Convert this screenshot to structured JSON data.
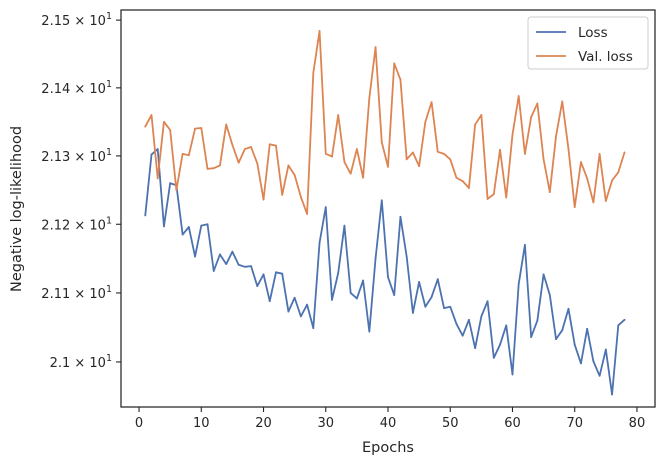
{
  "chart_data": {
    "type": "line",
    "title": "",
    "xlabel": "Epochs",
    "ylabel": "Negative log-likelihood",
    "xlim": [
      -2.9,
      82.9
    ],
    "ylim": [
      20.935,
      21.515
    ],
    "x_ticks": [
      0,
      10,
      20,
      30,
      40,
      50,
      60,
      70,
      80
    ],
    "x_tick_labels": [
      "0",
      "10",
      "20",
      "30",
      "40",
      "50",
      "60",
      "70",
      "80"
    ],
    "y_ticks": [
      21.0,
      21.1,
      21.2,
      21.3,
      21.4,
      21.5
    ],
    "y_tick_labels": [
      {
        "mantissa": "2.1",
        "base": "10",
        "exponent": "1"
      },
      {
        "mantissa": "2.11",
        "base": "10",
        "exponent": "1"
      },
      {
        "mantissa": "2.12",
        "base": "10",
        "exponent": "1"
      },
      {
        "mantissa": "2.13",
        "base": "10",
        "exponent": "1"
      },
      {
        "mantissa": "2.14",
        "base": "10",
        "exponent": "1"
      },
      {
        "mantissa": "2.15",
        "base": "10",
        "exponent": "1"
      }
    ],
    "y_scale": "log",
    "grid": false,
    "legend": "top-right",
    "series": [
      {
        "name": "Loss",
        "color": "#4c72b0",
        "x": [
          1,
          2,
          3,
          4,
          5,
          6,
          7,
          8,
          9,
          10,
          11,
          12,
          13,
          14,
          15,
          16,
          17,
          18,
          19,
          20,
          21,
          22,
          23,
          24,
          25,
          26,
          27,
          28,
          29,
          30,
          31,
          32,
          33,
          34,
          35,
          36,
          37,
          38,
          39,
          40,
          41,
          42,
          43,
          44,
          45,
          46,
          47,
          48,
          49,
          50,
          51,
          52,
          53,
          54,
          55,
          56,
          57,
          58,
          59,
          60,
          61,
          62,
          63,
          64,
          65,
          66,
          67,
          68,
          69,
          70,
          71,
          72,
          73,
          74,
          75,
          76,
          77,
          78
        ],
        "values": [
          21.213,
          21.302,
          21.31,
          21.197,
          21.26,
          21.257,
          21.185,
          21.196,
          21.153,
          21.198,
          21.2,
          21.132,
          21.156,
          21.142,
          21.16,
          21.141,
          21.138,
          21.139,
          21.11,
          21.127,
          21.088,
          21.13,
          21.128,
          21.073,
          21.093,
          21.066,
          21.083,
          21.049,
          21.173,
          21.225,
          21.09,
          21.129,
          21.198,
          21.1,
          21.092,
          21.118,
          21.044,
          21.15,
          21.235,
          21.123,
          21.097,
          21.211,
          21.153,
          21.071,
          21.116,
          21.08,
          21.094,
          21.12,
          21.078,
          21.08,
          21.055,
          21.038,
          21.061,
          21.02,
          21.066,
          21.088,
          21.006,
          21.025,
          21.053,
          20.982,
          21.113,
          21.17,
          21.036,
          21.06,
          21.127,
          21.097,
          21.033,
          21.046,
          21.077,
          21.025,
          20.998,
          21.048,
          21.001,
          20.98,
          21.018,
          20.953,
          21.053,
          21.061
        ]
      },
      {
        "name": "Val. loss",
        "color": "#dd8452",
        "x": [
          1,
          2,
          3,
          4,
          5,
          6,
          7,
          8,
          9,
          10,
          11,
          12,
          13,
          14,
          15,
          16,
          17,
          18,
          19,
          20,
          21,
          22,
          23,
          24,
          25,
          26,
          27,
          28,
          29,
          30,
          31,
          32,
          33,
          34,
          35,
          36,
          37,
          38,
          39,
          40,
          41,
          42,
          43,
          44,
          45,
          46,
          47,
          48,
          49,
          50,
          51,
          52,
          53,
          54,
          55,
          56,
          57,
          58,
          59,
          60,
          61,
          62,
          63,
          64,
          65,
          66,
          67,
          68,
          69,
          70,
          71,
          72,
          73,
          74,
          75,
          76,
          77,
          78
        ],
        "values": [
          21.343,
          21.36,
          21.267,
          21.35,
          21.338,
          21.25,
          21.303,
          21.301,
          21.34,
          21.341,
          21.281,
          21.282,
          21.286,
          21.346,
          21.316,
          21.29,
          21.31,
          21.313,
          21.289,
          21.236,
          21.317,
          21.315,
          21.243,
          21.286,
          21.272,
          21.24,
          21.215,
          21.422,
          21.484,
          21.303,
          21.299,
          21.36,
          21.291,
          21.274,
          21.31,
          21.268,
          21.385,
          21.46,
          21.32,
          21.284,
          21.436,
          21.412,
          21.295,
          21.305,
          21.285,
          21.35,
          21.379,
          21.306,
          21.303,
          21.295,
          21.268,
          21.263,
          21.253,
          21.346,
          21.36,
          21.237,
          21.244,
          21.309,
          21.239,
          21.331,
          21.388,
          21.303,
          21.357,
          21.377,
          21.295,
          21.247,
          21.329,
          21.38,
          21.31,
          21.225,
          21.291,
          21.267,
          21.232,
          21.303,
          21.234,
          21.264,
          21.276,
          21.305
        ]
      }
    ]
  }
}
